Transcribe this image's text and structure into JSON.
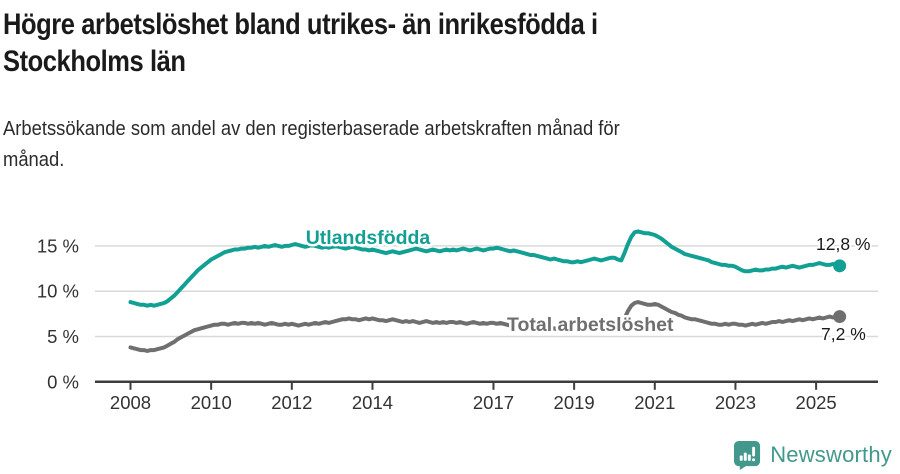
{
  "header": {
    "title": "Högre arbetslöshet bland utrikes- än inrikesfödda i Stockholms län",
    "title_lines": [
      "Högre arbetslöshet bland utrikes- än inrikesfödda i",
      "Stockholms län"
    ],
    "subtitle": "Arbetssökande som andel av den registerbaserade arbetskraften månad för månad.",
    "subtitle_lines": [
      "Arbetssökande som andel av den registerbaserade arbetskraften månad för",
      "månad."
    ]
  },
  "footer": {
    "brand": "Newsworthy",
    "logo_icon": "newsworthy-speech-bubble-bar-chart-icon"
  },
  "colors": {
    "foreign_born_line": "#13a094",
    "total_line": "#6f6f6f",
    "gridline": "#d9d9d9",
    "axis": "#3d3d3d",
    "tick_text": "#333333",
    "annotation_text": "#1a1a1a",
    "brand_teal": "#42988c"
  },
  "chart_data": {
    "type": "line",
    "title": "Högre arbetslöshet bland utrikes- än inrikesfödda i Stockholms län",
    "xlabel": "",
    "ylabel": "",
    "x_unit": "month",
    "x_start_year": 2008,
    "x_months_per_step": 1,
    "x_end": "2025-08",
    "x_tick_years": [
      2008,
      2010,
      2012,
      2014,
      2017,
      2019,
      2021,
      2023,
      2025
    ],
    "x_tick_labels": [
      "2008",
      "2010",
      "2012",
      "2014",
      "2017",
      "2019",
      "2021",
      "2023",
      "2025"
    ],
    "y_ticks": [
      0,
      5,
      10,
      15
    ],
    "y_tick_labels": [
      "0 %",
      "5 %",
      "10 %",
      "15 %"
    ],
    "ylim": [
      0,
      18
    ],
    "xlim_years": [
      2007.1,
      2026.5
    ],
    "grid": "horizontal",
    "legend": "inline-series-labels",
    "series": [
      {
        "name": "Utlandsfödda",
        "color": "#13a094",
        "end_label": "12,8 %",
        "end_value": 12.8,
        "label_pos": {
          "x": 368,
          "y": 244,
          "anchor": "middle"
        },
        "end_label_pos": {
          "x": 816,
          "y": 250,
          "anchor": "start"
        },
        "values": [
          8.8,
          8.7,
          8.6,
          8.5,
          8.5,
          8.4,
          8.5,
          8.4,
          8.5,
          8.6,
          8.7,
          8.9,
          9.2,
          9.5,
          9.9,
          10.3,
          10.7,
          11.1,
          11.5,
          11.9,
          12.3,
          12.6,
          12.9,
          13.2,
          13.5,
          13.7,
          13.9,
          14.1,
          14.3,
          14.4,
          14.5,
          14.6,
          14.6,
          14.7,
          14.7,
          14.8,
          14.8,
          14.9,
          14.8,
          14.9,
          15.0,
          14.9,
          15.0,
          15.1,
          15.0,
          14.9,
          15.0,
          15.0,
          15.1,
          15.2,
          15.1,
          15.0,
          14.9,
          15.0,
          15.1,
          15.0,
          14.9,
          14.8,
          14.9,
          14.8,
          14.9,
          15.0,
          14.9,
          14.8,
          14.7,
          14.8,
          14.9,
          14.8,
          14.7,
          14.6,
          14.6,
          14.5,
          14.6,
          14.5,
          14.4,
          14.3,
          14.2,
          14.3,
          14.4,
          14.3,
          14.2,
          14.3,
          14.4,
          14.5,
          14.6,
          14.7,
          14.6,
          14.5,
          14.4,
          14.5,
          14.6,
          14.5,
          14.4,
          14.5,
          14.6,
          14.5,
          14.6,
          14.5,
          14.6,
          14.7,
          14.6,
          14.5,
          14.6,
          14.7,
          14.6,
          14.5,
          14.6,
          14.7,
          14.7,
          14.8,
          14.7,
          14.6,
          14.5,
          14.4,
          14.5,
          14.4,
          14.3,
          14.2,
          14.1,
          14.0,
          14.0,
          13.9,
          13.8,
          13.7,
          13.6,
          13.5,
          13.6,
          13.5,
          13.4,
          13.3,
          13.3,
          13.2,
          13.2,
          13.3,
          13.2,
          13.3,
          13.4,
          13.5,
          13.6,
          13.5,
          13.4,
          13.5,
          13.6,
          13.7,
          13.7,
          13.5,
          13.4,
          14.2,
          15.2,
          16.0,
          16.5,
          16.6,
          16.5,
          16.4,
          16.4,
          16.3,
          16.2,
          16.0,
          15.8,
          15.5,
          15.2,
          14.9,
          14.7,
          14.5,
          14.3,
          14.1,
          14.0,
          13.9,
          13.8,
          13.7,
          13.6,
          13.5,
          13.4,
          13.2,
          13.1,
          13.0,
          12.9,
          12.9,
          12.8,
          12.8,
          12.7,
          12.5,
          12.3,
          12.2,
          12.2,
          12.3,
          12.4,
          12.3,
          12.3,
          12.4,
          12.4,
          12.5,
          12.5,
          12.6,
          12.7,
          12.6,
          12.7,
          12.8,
          12.7,
          12.6,
          12.7,
          12.8,
          12.9,
          12.9,
          13.0,
          13.1,
          13.0,
          12.9,
          12.9,
          13.0,
          12.9,
          12.8
        ]
      },
      {
        "name": "Total arbetslöshet",
        "color": "#6f6f6f",
        "end_label": "7,2 %",
        "end_value": 7.2,
        "label_pos": {
          "x": 507,
          "y": 331,
          "anchor": "start"
        },
        "end_label_pos": {
          "x": 821,
          "y": 340,
          "anchor": "start"
        },
        "values": [
          3.8,
          3.7,
          3.6,
          3.5,
          3.5,
          3.4,
          3.5,
          3.5,
          3.6,
          3.7,
          3.8,
          4.0,
          4.2,
          4.4,
          4.7,
          4.9,
          5.1,
          5.3,
          5.5,
          5.7,
          5.8,
          5.9,
          6.0,
          6.1,
          6.2,
          6.3,
          6.3,
          6.4,
          6.4,
          6.3,
          6.4,
          6.5,
          6.4,
          6.5,
          6.5,
          6.4,
          6.5,
          6.4,
          6.5,
          6.4,
          6.3,
          6.4,
          6.5,
          6.4,
          6.3,
          6.3,
          6.4,
          6.3,
          6.4,
          6.3,
          6.2,
          6.3,
          6.4,
          6.3,
          6.4,
          6.5,
          6.4,
          6.5,
          6.6,
          6.5,
          6.6,
          6.7,
          6.8,
          6.9,
          6.9,
          7.0,
          6.9,
          6.9,
          6.8,
          6.9,
          7.0,
          6.9,
          7.0,
          6.9,
          6.8,
          6.8,
          6.7,
          6.8,
          6.9,
          6.8,
          6.7,
          6.6,
          6.7,
          6.6,
          6.7,
          6.6,
          6.5,
          6.6,
          6.7,
          6.6,
          6.5,
          6.6,
          6.5,
          6.6,
          6.5,
          6.6,
          6.6,
          6.5,
          6.6,
          6.5,
          6.4,
          6.5,
          6.6,
          6.5,
          6.4,
          6.5,
          6.4,
          6.5,
          6.5,
          6.4,
          6.5,
          6.4,
          6.3,
          6.2,
          6.3,
          6.2,
          6.1,
          6.2,
          6.1,
          6.0,
          6.1,
          6.0,
          5.9,
          6.0,
          5.9,
          5.8,
          5.9,
          5.8,
          5.9,
          5.8,
          5.9,
          5.8,
          5.9,
          5.8,
          5.9,
          6.0,
          5.9,
          6.0,
          6.1,
          6.0,
          6.1,
          6.0,
          6.1,
          6.2,
          6.2,
          6.1,
          6.2,
          7.0,
          7.8,
          8.4,
          8.7,
          8.8,
          8.7,
          8.6,
          8.5,
          8.5,
          8.6,
          8.5,
          8.3,
          8.1,
          7.9,
          7.7,
          7.6,
          7.4,
          7.3,
          7.1,
          7.0,
          6.9,
          6.9,
          6.8,
          6.7,
          6.6,
          6.5,
          6.4,
          6.4,
          6.3,
          6.3,
          6.4,
          6.3,
          6.4,
          6.4,
          6.3,
          6.3,
          6.2,
          6.3,
          6.4,
          6.3,
          6.4,
          6.5,
          6.4,
          6.5,
          6.6,
          6.6,
          6.7,
          6.6,
          6.7,
          6.8,
          6.7,
          6.8,
          6.9,
          6.8,
          6.9,
          7.0,
          6.9,
          7.0,
          7.1,
          7.0,
          7.1,
          7.2,
          7.1,
          7.2,
          7.2
        ]
      }
    ]
  }
}
